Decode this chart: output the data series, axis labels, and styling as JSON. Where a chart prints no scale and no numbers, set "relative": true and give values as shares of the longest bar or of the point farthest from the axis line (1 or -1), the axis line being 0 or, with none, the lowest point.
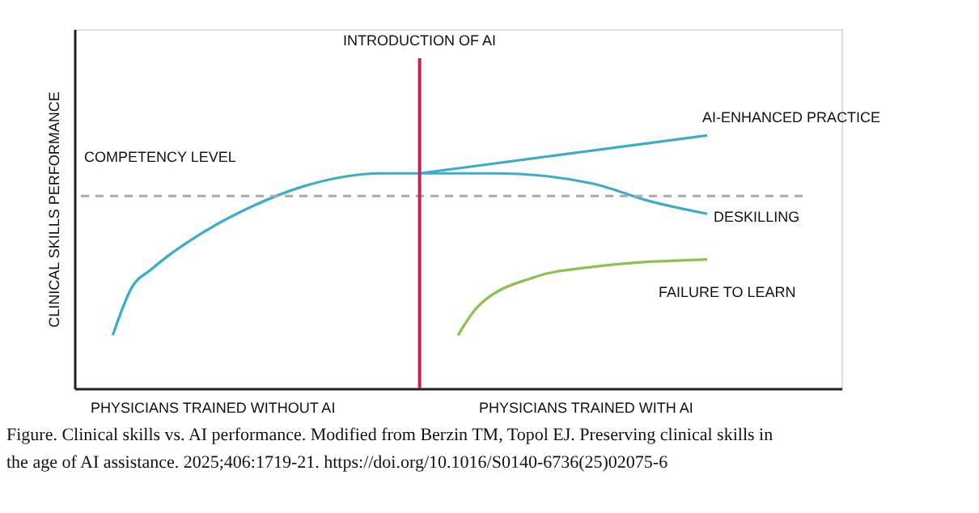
{
  "chart_data": {
    "type": "line",
    "relative": true,
    "ylabel": "CLINICAL SKILLS PERFORMANCE",
    "categories": [
      null,
      null,
      null,
      null,
      null,
      null,
      null,
      null,
      null,
      null,
      null,
      null,
      null,
      null,
      null,
      null,
      null,
      null,
      null,
      null,
      null,
      null,
      null,
      null,
      null,
      null,
      null,
      null,
      null,
      null,
      null,
      null,
      null,
      null,
      null,
      null,
      null,
      null,
      null,
      null,
      null
    ],
    "tick_labels": false,
    "grid": false,
    "legend": false,
    "marker": "none",
    "line_style": "solid",
    "series": [
      {
        "color": "#3aaec8",
        "values": [
          null,
          null,
          0.21,
          0.4,
          0.47,
          null,
          null,
          0.63,
          null,
          0.71,
          null,
          null,
          0.8,
          null,
          null,
          null,
          0.85,
          null,
          0.85,
          null,
          null,
          null,
          null,
          null,
          null,
          null,
          null,
          null,
          null,
          null,
          null,
          null,
          null,
          null,
          null,
          null,
          null,
          null,
          null,
          null,
          null
        ]
      },
      {
        "name": "AI-ENHANCED PRACTICE",
        "color": "#3aaec8",
        "values": [
          null,
          null,
          null,
          null,
          null,
          null,
          null,
          null,
          null,
          null,
          null,
          null,
          null,
          null,
          null,
          null,
          null,
          null,
          0.85,
          null,
          null,
          null,
          null,
          null,
          null,
          null,
          null,
          null,
          null,
          null,
          null,
          null,
          null,
          1.0,
          null,
          null,
          null,
          null,
          null,
          null,
          null
        ]
      },
      {
        "name": "DESKILLING",
        "color": "#3aaec8",
        "values": [
          null,
          null,
          null,
          null,
          null,
          null,
          null,
          null,
          null,
          null,
          null,
          null,
          null,
          null,
          null,
          null,
          null,
          null,
          0.85,
          null,
          null,
          null,
          0.85,
          null,
          null,
          null,
          null,
          0.81,
          null,
          null,
          0.74,
          null,
          null,
          0.69,
          null,
          null,
          null,
          null,
          null,
          null,
          null
        ]
      },
      {
        "name": "FAILURE TO LEARN",
        "color": "#8cc152",
        "values": [
          null,
          null,
          null,
          null,
          null,
          null,
          null,
          null,
          null,
          null,
          null,
          null,
          null,
          null,
          null,
          null,
          null,
          null,
          null,
          null,
          0.21,
          0.32,
          null,
          null,
          0.44,
          null,
          null,
          0.48,
          null,
          null,
          null,
          null,
          null,
          0.51,
          null,
          null,
          null,
          null,
          null,
          null,
          null
        ]
      }
    ],
    "ref_lines": [
      {
        "axis": "y",
        "value": 0.76,
        "label": "COMPETENCY LEVEL",
        "color": "#aaaaaa",
        "line_style": "dashed"
      }
    ],
    "annotations": [
      "INTRODUCTION OF AI",
      "PHYSICIANS TRAINED WITHOUT AI",
      "PHYSICIANS TRAINED WITH AI",
      "Figure. Clinical skills vs. AI performance. Modified from Berzin TM, Topol EJ. Preserving clinical skills in the age of AI assistance. 2025;406:1719-21. https://doi.org/10.1016/S0140-6736(25)02075-6"
    ]
  }
}
